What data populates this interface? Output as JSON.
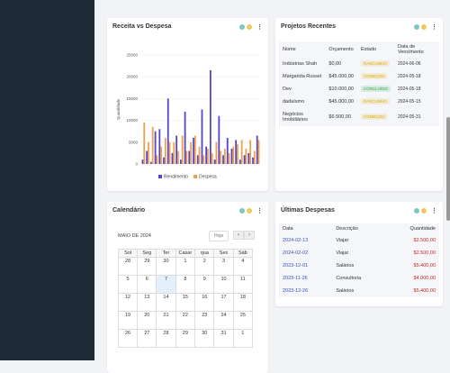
{
  "revenue_chart": {
    "type": "bar",
    "title": "Receita vs Despesa",
    "y_label": "Quantidade",
    "categories": [
      null,
      null,
      null,
      null,
      null,
      null,
      null,
      null,
      null,
      null,
      null,
      null,
      null,
      null,
      null,
      null,
      null,
      null,
      null,
      null,
      null,
      null,
      null,
      null,
      null,
      null,
      null,
      null
    ],
    "series": [
      {
        "name": "Rendimento",
        "color": "#5146c8",
        "values": [
          1000,
          3000,
          500,
          7500,
          8000,
          1500,
          15000,
          2500,
          6500,
          1000,
          12000,
          3000,
          6000,
          2000,
          12500,
          4000,
          21500,
          1000,
          11000,
          2000,
          6000,
          3500,
          5500,
          1000,
          2000,
          2500,
          1500,
          6500
        ]
      },
      {
        "name": "Despesa",
        "color": "#f0a04b",
        "values": [
          9500,
          5000,
          8500,
          2000,
          4000,
          6000,
          5000,
          5000,
          3000,
          6500,
          3000,
          5000,
          6500,
          4000,
          2000,
          3500,
          2500,
          5000,
          3000,
          3500,
          2500,
          4000,
          4500,
          5500,
          3500,
          5500,
          3000,
          5500
        ]
      }
    ],
    "ylim": [
      0,
      25000
    ],
    "yticks": [
      0,
      5000,
      10000,
      15000,
      20000,
      25000
    ],
    "grid": true
  },
  "projects": {
    "title": "Projetos Recentes",
    "columns": [
      "Nome",
      "Orçamento",
      "Estado",
      "Data de Vencimento"
    ],
    "rows": [
      [
        "Indústrias Shah",
        "$0,00",
        "RASCUNHO",
        "2024-06-06"
      ],
      [
        "Margarida Russel",
        "$45.000,00",
        "COMEÇOU",
        "2024-05-18"
      ],
      [
        "Dev",
        "$10.000,00",
        "CONCLUÍDO",
        "2024-05-18"
      ],
      [
        "dadaísmo",
        "$45.000,00",
        "RASCUNHO",
        "2024-05-15"
      ],
      [
        "Negócios Imobiliários",
        "$6.500,00",
        "COMEÇOU",
        "2024-05-31"
      ]
    ],
    "status_colors": [
      "#e0a800",
      "#e0a800",
      "#28a745",
      "#e0a800",
      "#e0a800"
    ]
  },
  "calendar": {
    "title": "Calendário",
    "month": "MAIO DE 2024",
    "today_button": "Hoje",
    "prev": "‹",
    "next": "›",
    "weekdays": [
      "Sol",
      "Seg",
      "Ter",
      "Casar",
      "qua",
      "Sex",
      "Sáb"
    ],
    "days": [
      [
        28,
        29,
        30,
        1,
        2,
        3,
        4
      ],
      [
        5,
        6,
        7,
        8,
        9,
        10,
        11
      ],
      [
        12,
        13,
        14,
        15,
        16,
        17,
        18
      ],
      [
        19,
        20,
        21,
        22,
        23,
        24,
        25
      ],
      [
        26,
        27,
        28,
        29,
        30,
        31,
        1
      ]
    ]
  },
  "expenses": {
    "title": "Últimas Despesas",
    "columns": [
      "Data",
      "Descrição",
      "Quantidade"
    ],
    "rows": [
      [
        "2024-02-13",
        "Viajar",
        "$2.500,00"
      ],
      [
        "2024-02-02",
        "Viajar",
        "$2.500,00"
      ],
      [
        "2023-12-01",
        "Salários",
        "$5.400,00"
      ],
      [
        "2023-11-26",
        "Consultoria",
        "$4.000,00"
      ],
      [
        "2023-12-26",
        "Salários",
        "$5.400,00"
      ]
    ]
  }
}
